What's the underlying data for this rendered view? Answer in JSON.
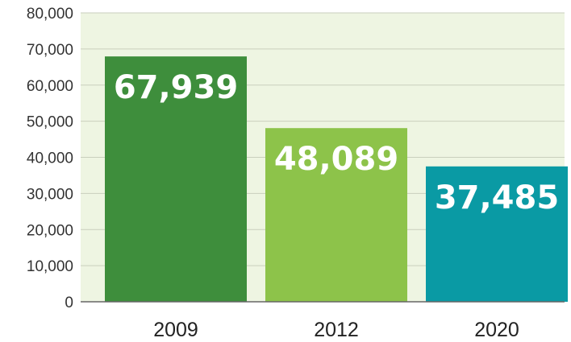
{
  "chart_data": {
    "type": "bar",
    "title": "",
    "xlabel": "",
    "ylabel": "",
    "categories": [
      "2009",
      "2012",
      "2020"
    ],
    "values": [
      67939,
      48089,
      37485
    ],
    "data_labels": [
      "67,939",
      "48,089",
      "37,485"
    ],
    "bar_colors": [
      "#3e8e3c",
      "#8dc34a",
      "#0a9aa4"
    ],
    "ylim": [
      0,
      80000
    ],
    "yticks": [
      0,
      10000,
      20000,
      30000,
      40000,
      50000,
      60000,
      70000,
      80000
    ],
    "ytick_labels": [
      "0",
      "10,000",
      "20,000",
      "30,000",
      "40,000",
      "50,000",
      "60,000",
      "70,000",
      "80,000"
    ],
    "grid": true,
    "legend": "none",
    "plot_background": "#eef5e2",
    "grid_color": "#c9cfbd"
  }
}
